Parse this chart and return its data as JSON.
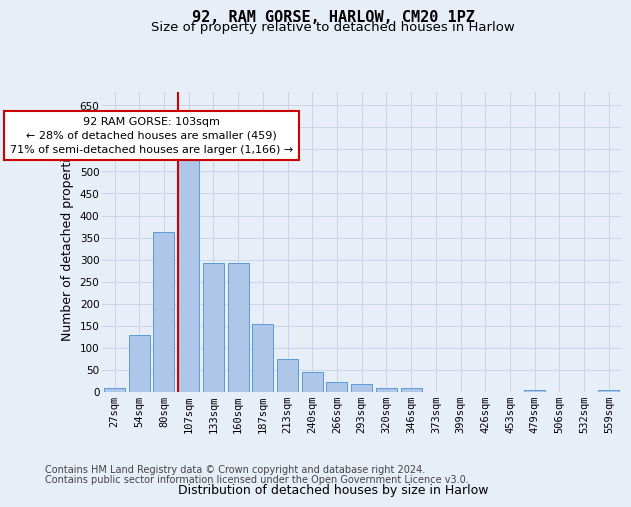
{
  "title1": "92, RAM GORSE, HARLOW, CM20 1PZ",
  "title2": "Size of property relative to detached houses in Harlow",
  "xlabel": "Distribution of detached houses by size in Harlow",
  "ylabel": "Number of detached properties",
  "categories": [
    "27sqm",
    "54sqm",
    "80sqm",
    "107sqm",
    "133sqm",
    "160sqm",
    "187sqm",
    "213sqm",
    "240sqm",
    "266sqm",
    "293sqm",
    "320sqm",
    "346sqm",
    "373sqm",
    "399sqm",
    "426sqm",
    "453sqm",
    "479sqm",
    "506sqm",
    "532sqm",
    "559sqm"
  ],
  "values": [
    10,
    130,
    362,
    535,
    292,
    292,
    155,
    75,
    45,
    22,
    18,
    10,
    8,
    1,
    1,
    0,
    0,
    5,
    0,
    0,
    5
  ],
  "bar_color": "#aec6e8",
  "bar_edge_color": "#5b9bd5",
  "vline_color": "#cc0000",
  "vline_x_index": 3,
  "annotation_text": "92 RAM GORSE: 103sqm\n← 28% of detached houses are smaller (459)\n71% of semi-detached houses are larger (1,166) →",
  "annotation_box_color": "#ffffff",
  "annotation_box_edge": "#cc0000",
  "ylim": [
    0,
    680
  ],
  "yticks": [
    0,
    50,
    100,
    150,
    200,
    250,
    300,
    350,
    400,
    450,
    500,
    550,
    600,
    650
  ],
  "grid_color": "#c8d4e8",
  "bg_color": "#e8eef8",
  "footer1": "Contains HM Land Registry data © Crown copyright and database right 2024.",
  "footer2": "Contains public sector information licensed under the Open Government Licence v3.0.",
  "title1_fontsize": 11,
  "title2_fontsize": 9.5,
  "ylabel_fontsize": 9,
  "xlabel_fontsize": 9,
  "tick_fontsize": 7.5,
  "annot_fontsize": 8,
  "footer_fontsize": 7
}
